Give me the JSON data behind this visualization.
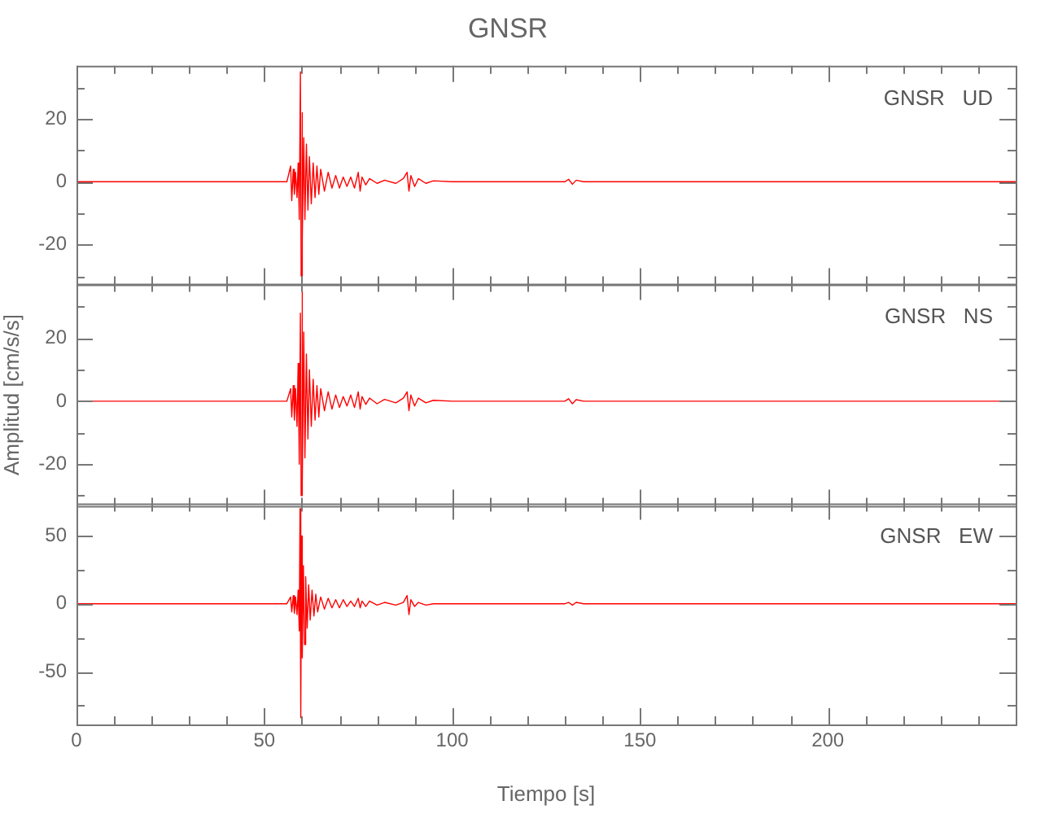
{
  "chart_data": [
    {
      "type": "line",
      "title": "GNSR",
      "annotations": [
        "GNSR   UD"
      ],
      "tick_labels": "y",
      "xlim": [
        0,
        250
      ],
      "ylim": [
        -32.7,
        36.9
      ],
      "xticks": [
        0,
        {
          "value": 10,
          "label": null
        },
        {
          "value": 20,
          "label": null
        },
        {
          "value": 30,
          "label": null
        },
        {
          "value": 40,
          "label": null
        },
        50,
        {
          "value": 60,
          "label": null
        },
        {
          "value": 70,
          "label": null
        },
        {
          "value": 80,
          "label": null
        },
        {
          "value": 90,
          "label": null
        },
        100,
        {
          "value": 110,
          "label": null
        },
        {
          "value": 120,
          "label": null
        },
        {
          "value": 130,
          "label": null
        },
        {
          "value": 140,
          "label": null
        },
        150,
        {
          "value": 160,
          "label": null
        },
        {
          "value": 170,
          "label": null
        },
        {
          "value": 180,
          "label": null
        },
        {
          "value": 190,
          "label": null
        },
        200,
        {
          "value": 210,
          "label": null
        },
        {
          "value": 220,
          "label": null
        },
        {
          "value": 230,
          "label": null
        },
        {
          "value": 240,
          "label": null
        }
      ],
      "yticks": [
        {
          "value": -30,
          "label": null
        },
        -20,
        {
          "value": -10,
          "label": null
        },
        0,
        {
          "value": 10,
          "label": null
        },
        20,
        {
          "value": 30,
          "label": null
        }
      ],
      "series": [
        {
          "color": "#ff0000",
          "x": [
            0,
            20,
            40,
            56,
            57,
            57.3,
            57.7,
            58,
            58.3,
            58.7,
            59,
            59.3,
            59.6,
            59.8,
            60,
            60.2,
            60.5,
            60.8,
            61.2,
            61.6,
            62,
            62.5,
            63,
            63.5,
            64,
            64.5,
            65,
            66,
            67,
            68,
            69,
            70,
            71,
            72,
            73,
            74,
            75,
            75.5,
            76,
            77,
            78,
            80,
            82,
            85,
            87,
            88,
            88.5,
            89,
            90,
            91,
            93,
            95,
            100,
            130,
            131,
            132,
            133,
            135,
            170,
            200,
            250
          ],
          "values": [
            0,
            0,
            0,
            0,
            5,
            -6,
            4,
            -4,
            3,
            -5,
            6,
            -12,
            35,
            -30,
            22,
            -18,
            14,
            -12,
            12,
            -9,
            8,
            -7,
            6,
            -5,
            5,
            -4,
            4,
            -3,
            3,
            -2,
            2,
            -2,
            1.5,
            -1.5,
            1.5,
            -2,
            3,
            -3,
            1.5,
            -1,
            1,
            -0.5,
            0.5,
            -0.5,
            1,
            3,
            -3,
            2,
            -1.5,
            1,
            -0.5,
            0.3,
            0,
            0,
            0.8,
            -0.8,
            0.5,
            0,
            0,
            0,
            0
          ]
        }
      ]
    },
    {
      "type": "line",
      "ylabel": "Amplitud [cm/s/s]",
      "annotations": [
        "GNSR   NS"
      ],
      "tick_labels": "y",
      "xlim": [
        0,
        250
      ],
      "ylim": [
        -33.3,
        37.4
      ],
      "xticks": [
        0,
        {
          "value": 10,
          "label": null
        },
        {
          "value": 20,
          "label": null
        },
        {
          "value": 30,
          "label": null
        },
        {
          "value": 40,
          "label": null
        },
        50,
        {
          "value": 60,
          "label": null
        },
        {
          "value": 70,
          "label": null
        },
        {
          "value": 80,
          "label": null
        },
        {
          "value": 90,
          "label": null
        },
        100,
        {
          "value": 110,
          "label": null
        },
        {
          "value": 120,
          "label": null
        },
        {
          "value": 130,
          "label": null
        },
        {
          "value": 140,
          "label": null
        },
        150,
        {
          "value": 160,
          "label": null
        },
        {
          "value": 170,
          "label": null
        },
        {
          "value": 180,
          "label": null
        },
        {
          "value": 190,
          "label": null
        },
        200,
        {
          "value": 210,
          "label": null
        },
        {
          "value": 220,
          "label": null
        },
        {
          "value": 230,
          "label": null
        },
        {
          "value": 240,
          "label": null
        }
      ],
      "yticks": [
        {
          "value": -30,
          "label": null
        },
        -20,
        {
          "value": -10,
          "label": null
        },
        0,
        {
          "value": 10,
          "label": null
        },
        20,
        {
          "value": 30,
          "label": null
        }
      ],
      "series": [
        {
          "color": "#ff0000",
          "x": [
            0,
            20,
            40,
            56,
            57,
            57.3,
            57.7,
            58,
            58.3,
            58.7,
            59,
            59.3,
            59.6,
            59.8,
            60,
            60.2,
            60.5,
            60.8,
            61.2,
            61.6,
            62,
            62.5,
            63,
            63.5,
            64,
            64.5,
            65,
            66,
            67,
            68,
            69,
            70,
            71,
            72,
            73,
            74,
            75,
            75.5,
            76,
            77,
            78,
            80,
            82,
            85,
            87,
            88,
            88.5,
            89,
            90,
            91,
            93,
            95,
            100,
            130,
            131,
            132,
            133,
            135,
            170,
            200,
            250
          ],
          "values": [
            0,
            0,
            0,
            0,
            4,
            -5,
            5,
            -6,
            4,
            -8,
            12,
            -20,
            28,
            -30,
            35,
            -26,
            22,
            -18,
            15,
            -12,
            10,
            -8,
            7,
            -6,
            5,
            -5,
            4,
            -3,
            3,
            -2.5,
            2,
            -2,
            1.5,
            -1.5,
            2,
            -2,
            3,
            -2.5,
            1.5,
            -1,
            1,
            -0.8,
            0.6,
            -0.5,
            1,
            3,
            -3,
            2,
            -1.5,
            1,
            -0.5,
            0.3,
            0,
            0,
            0.8,
            -0.8,
            0.5,
            0,
            0,
            0,
            0
          ]
        }
      ]
    },
    {
      "type": "line",
      "xlabel": "Tiempo [s]",
      "annotations": [
        "GNSR   EW"
      ],
      "xlim": [
        0,
        250
      ],
      "ylim": [
        -89,
        74
      ],
      "xticks": [
        0,
        {
          "value": 10,
          "label": null
        },
        {
          "value": 20,
          "label": null
        },
        {
          "value": 30,
          "label": null
        },
        {
          "value": 40,
          "label": null
        },
        50,
        {
          "value": 60,
          "label": null
        },
        {
          "value": 70,
          "label": null
        },
        {
          "value": 80,
          "label": null
        },
        {
          "value": 90,
          "label": null
        },
        100,
        {
          "value": 110,
          "label": null
        },
        {
          "value": 120,
          "label": null
        },
        {
          "value": 130,
          "label": null
        },
        {
          "value": 140,
          "label": null
        },
        150,
        {
          "value": 160,
          "label": null
        },
        {
          "value": 170,
          "label": null
        },
        {
          "value": 180,
          "label": null
        },
        {
          "value": 190,
          "label": null
        },
        200,
        {
          "value": 210,
          "label": null
        },
        {
          "value": 220,
          "label": null
        },
        {
          "value": 230,
          "label": null
        },
        {
          "value": 240,
          "label": null
        }
      ],
      "yticks": [
        {
          "value": -75,
          "label": null
        },
        -50,
        {
          "value": -25,
          "label": null
        },
        0,
        {
          "value": 25,
          "label": null
        },
        50
      ],
      "series": [
        {
          "color": "#ff0000",
          "x": [
            0,
            20,
            40,
            56,
            57,
            57.3,
            57.7,
            58,
            58.3,
            58.7,
            59,
            59.3,
            59.5,
            59.7,
            59.9,
            60.1,
            60.4,
            60.7,
            61,
            61.4,
            61.8,
            62.2,
            62.7,
            63.2,
            63.7,
            64.2,
            65,
            66,
            67,
            68,
            69,
            70,
            71,
            72,
            73,
            74,
            75,
            75.5,
            76,
            77,
            78,
            80,
            82,
            85,
            87,
            88,
            88.5,
            89,
            90,
            91,
            93,
            95,
            100,
            130,
            131,
            132,
            133,
            135,
            170,
            200,
            250
          ],
          "values": [
            0,
            0,
            0,
            0,
            5,
            -6,
            6,
            -7,
            5,
            -8,
            10,
            -20,
            70,
            -84,
            50,
            -40,
            28,
            -30,
            20,
            -18,
            14,
            -12,
            10,
            -9,
            7,
            -6,
            5,
            -4,
            4,
            -3,
            3,
            -3,
            3,
            -2,
            2,
            -2,
            4,
            -3,
            2,
            -2,
            2,
            -1,
            1,
            -1,
            1,
            6,
            -8,
            3,
            -2,
            1,
            -1,
            0,
            0,
            0,
            1,
            -1,
            1,
            0,
            0,
            0,
            0
          ]
        }
      ]
    }
  ]
}
